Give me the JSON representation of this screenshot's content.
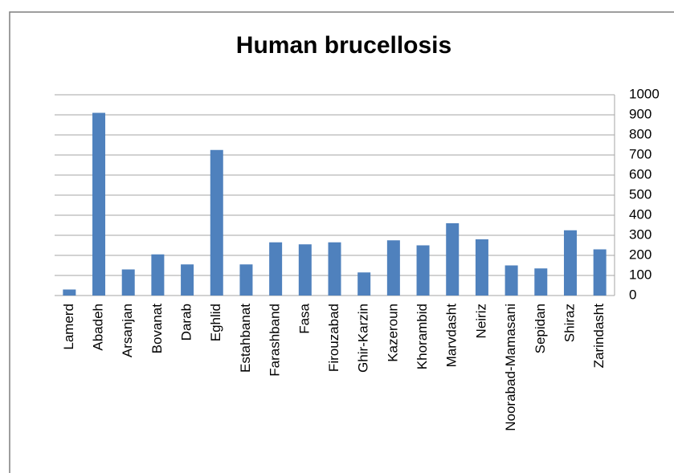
{
  "chart_data": {
    "type": "bar",
    "title": "Human brucellosis",
    "categories": [
      "Lamerd",
      "Abadeh",
      "Arsanjan",
      "Bovanat",
      "Darab",
      "Eghlid",
      "Estahbanat",
      "Farashband",
      "Fasa",
      "Firouzabad",
      "Ghir-Karzin",
      "Kazeroun",
      "Khorambid",
      "Marvdasht",
      "Neiriz",
      "Noorabad-Mamasani",
      "Sepidan",
      "Shiraz",
      "Zarindasht"
    ],
    "values": [
      30,
      910,
      130,
      205,
      155,
      725,
      155,
      265,
      255,
      265,
      115,
      275,
      250,
      360,
      280,
      150,
      135,
      325,
      230
    ],
    "color": "#4f81bd",
    "ylim": [
      0,
      1000
    ],
    "yticks": [
      0,
      100,
      200,
      300,
      400,
      500,
      600,
      700,
      800,
      900,
      1000
    ],
    "grid": true,
    "y_axis_side": "right"
  }
}
